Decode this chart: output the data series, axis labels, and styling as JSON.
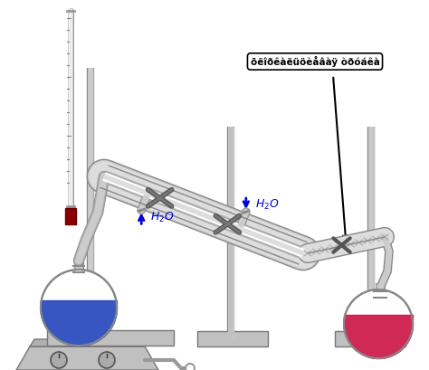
{
  "bg_color": "#ffffff",
  "blue_color": "#2244bb",
  "red_color": "#cc1144",
  "arrow_color": "#0000dd",
  "stand_color": "#aaaaaa",
  "light_gray": "#cccccc",
  "mid_gray": "#999999",
  "dark_gray": "#666666",
  "stopper_color": "#8B0000",
  "label_text": "õëîðêàëüöèåâàÿ òðóáêà"
}
